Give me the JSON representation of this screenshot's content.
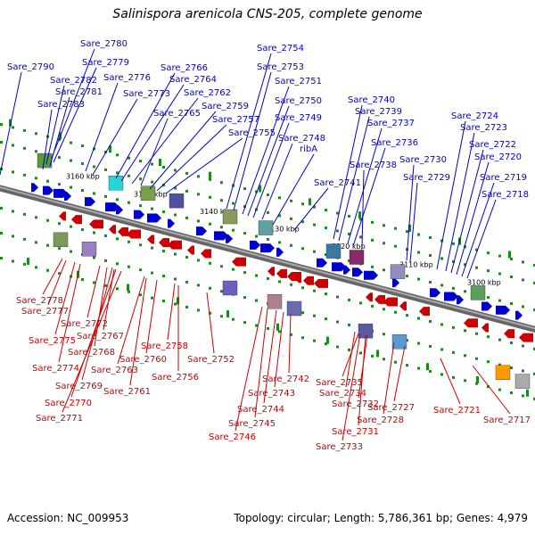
{
  "title": "Salinispora arenicola CNS-205, complete genome",
  "accession_label": "Accession:",
  "accession": "NC_009953",
  "topology_label": "Topology:",
  "topology": "circular",
  "length_label": "Length:",
  "length": "5,786,361 bp",
  "genes_label": "Genes:",
  "genes": "4,979",
  "colors": {
    "forward": "#0000cc",
    "reverse": "#cc0000",
    "tick": "#1a8a1a",
    "backbone": "#808080"
  },
  "scale_ticks": [
    "3160 kbp",
    "3150 kbp",
    "3140 kbp",
    "3130 kbp",
    "3120 kbp",
    "3110 kbp",
    "3100 kbp"
  ],
  "forward_genes": [
    "Sare_2790",
    "Sare_2780",
    "Sare_2779",
    "Sare_2782",
    "Sare_2781",
    "Sare_2783",
    "Sare_2776",
    "Sare_2773",
    "Sare_2766",
    "Sare_2764",
    "Sare_2762",
    "Sare_2765",
    "Sare_2759",
    "Sare_2757",
    "Sare_2755",
    "Sare_2754",
    "Sare_2753",
    "Sare_2751",
    "Sare_2750",
    "Sare_2749",
    "Sare_2748",
    "ribA",
    "Sare_2741",
    "Sare_2740",
    "Sare_2739",
    "Sare_2737",
    "Sare_2736",
    "Sare_2738",
    "Sare_2730",
    "Sare_2729",
    "Sare_2724",
    "Sare_2723",
    "Sare_2722",
    "Sare_2720",
    "Sare_2719",
    "Sare_2718"
  ],
  "reverse_genes": [
    "Sare_2778",
    "Sare_2777",
    "Sare_2772",
    "Sare_2775",
    "Sare_2767",
    "Sare_2768",
    "Sare_2774",
    "Sare_2769",
    "Sare_2770",
    "Sare_2771",
    "Sare_2763",
    "Sare_2760",
    "Sare_2758",
    "Sare_2761",
    "Sare_2756",
    "Sare_2752",
    "Sare_2742",
    "Sare_2743",
    "Sare_2744",
    "Sare_2745",
    "Sare_2746",
    "Sare_2735",
    "Sare_2734",
    "Sare_2732",
    "Sare_2731",
    "Sare_2733",
    "Sare_2727",
    "Sare_2728",
    "Sare_2721",
    "Sare_2717"
  ]
}
